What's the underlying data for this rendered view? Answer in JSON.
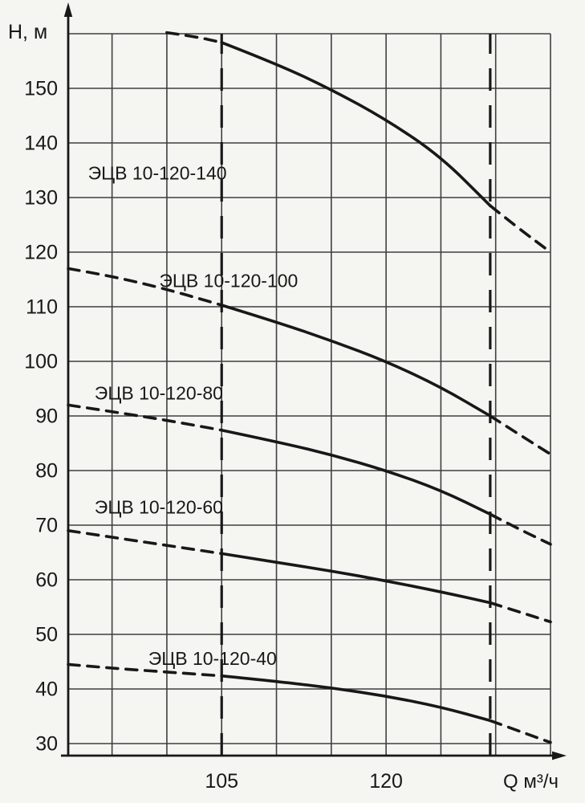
{
  "page": {
    "background": "#f5f5f2",
    "ink": "#181818",
    "grid_color": "#3f3f3f"
  },
  "chart_data": {
    "type": "line",
    "title": "",
    "xlabel": "Q м³/ч",
    "ylabel": "H, м",
    "xlim": [
      91,
      135
    ],
    "ylim": [
      30,
      160
    ],
    "x_ticks": [
      105,
      120
    ],
    "y_ticks": [
      150,
      140,
      130,
      120,
      110,
      100,
      90,
      80,
      70,
      60,
      50,
      40,
      30
    ],
    "x_grid_start": 95,
    "x_grid_end": 135,
    "x_grid_step": 5,
    "y_grid_start": 30,
    "y_grid_end": 160,
    "y_grid_step": 10,
    "grid": true,
    "legend_position": "labels-on-chart",
    "working_range": [
      105,
      129.5
    ],
    "series": [
      {
        "name": "ЭЦВ 10-120-140",
        "label_at": [
          92.8,
          134.5
        ],
        "dashed_left": [
          [
            100,
            160.2
          ],
          [
            102.5,
            159.5
          ],
          [
            105,
            158.4
          ]
        ],
        "solid": [
          [
            105,
            158.4
          ],
          [
            110,
            154.5
          ],
          [
            115,
            149.8
          ],
          [
            120,
            144.3
          ],
          [
            125,
            137.5
          ],
          [
            129.5,
            128.5
          ]
        ],
        "dashed_right": [
          [
            129.5,
            128.5
          ],
          [
            132,
            124.5
          ],
          [
            135,
            120
          ]
        ]
      },
      {
        "name": "ЭЦВ 10-120-100",
        "label_at": [
          99.3,
          114.8
        ],
        "dashed_left": [
          [
            91,
            117
          ],
          [
            95,
            115.6
          ],
          [
            100,
            113.2
          ],
          [
            105,
            110.3
          ]
        ],
        "solid": [
          [
            105,
            110.3
          ],
          [
            110,
            107.2
          ],
          [
            115,
            103.8
          ],
          [
            120,
            100
          ],
          [
            125,
            95.3
          ],
          [
            129.5,
            90
          ]
        ],
        "dashed_right": [
          [
            129.5,
            90
          ],
          [
            132,
            86.8
          ],
          [
            135,
            83
          ]
        ]
      },
      {
        "name": "ЭЦВ 10-120-80",
        "label_at": [
          93.4,
          94.2
        ],
        "dashed_left": [
          [
            91,
            92
          ],
          [
            95,
            90.8
          ],
          [
            100,
            89.2
          ],
          [
            105,
            87.4
          ]
        ],
        "solid": [
          [
            105,
            87.4
          ],
          [
            110,
            85.3
          ],
          [
            115,
            82.9
          ],
          [
            120,
            80
          ],
          [
            125,
            76.4
          ],
          [
            129.5,
            72
          ]
        ],
        "dashed_right": [
          [
            129.5,
            72
          ],
          [
            132,
            69.4
          ],
          [
            135,
            66.5
          ]
        ]
      },
      {
        "name": "ЭЦВ 10-120-60",
        "label_at": [
          93.4,
          73.3
        ],
        "dashed_left": [
          [
            91,
            69
          ],
          [
            95,
            67.8
          ],
          [
            100,
            66.3
          ],
          [
            105,
            64.8
          ]
        ],
        "solid": [
          [
            105,
            64.8
          ],
          [
            110,
            63.2
          ],
          [
            115,
            61.6
          ],
          [
            120,
            59.8
          ],
          [
            125,
            57.8
          ],
          [
            129.5,
            55.8
          ]
        ],
        "dashed_right": [
          [
            129.5,
            55.8
          ],
          [
            132,
            54.2
          ],
          [
            135,
            52.3
          ]
        ]
      },
      {
        "name": "ЭЦВ 10-120-40",
        "label_at": [
          98.3,
          45.6
        ],
        "dashed_left": [
          [
            91,
            44.5
          ],
          [
            95,
            43.8
          ],
          [
            100,
            43.1
          ],
          [
            105,
            42.4
          ]
        ],
        "solid": [
          [
            105,
            42.4
          ],
          [
            110,
            41.4
          ],
          [
            115,
            40.2
          ],
          [
            120,
            38.7
          ],
          [
            125,
            36.7
          ],
          [
            129.5,
            34.2
          ]
        ],
        "dashed_right": [
          [
            129.5,
            34.2
          ],
          [
            132,
            32.4
          ],
          [
            135,
            30.2
          ]
        ]
      }
    ]
  }
}
